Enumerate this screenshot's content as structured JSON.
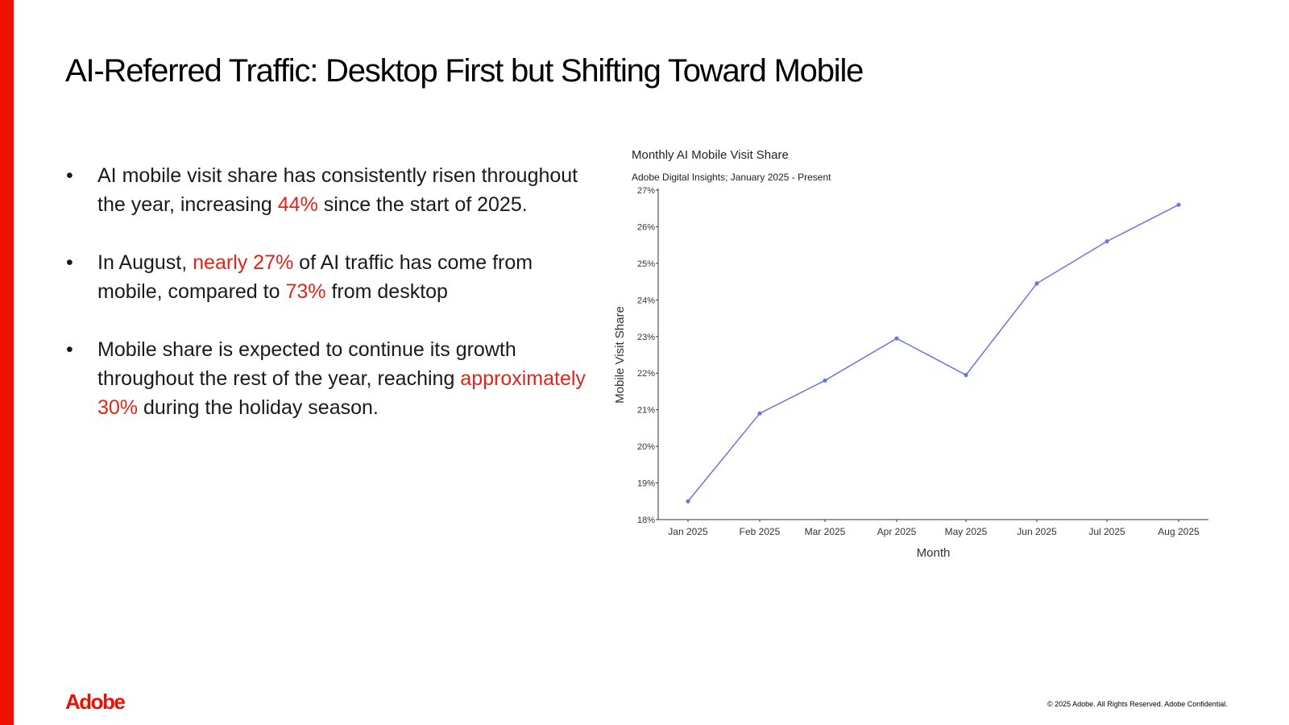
{
  "slide": {
    "title": "AI-Referred Traffic: Desktop First but Shifting Toward Mobile",
    "brand_color": "#eb1000",
    "highlight_color": "#e1251b"
  },
  "bullets": [
    {
      "pre": "AI mobile visit share has consistently risen throughout the year, increasing ",
      "hl": "44%",
      "post": " since the start of 2025."
    },
    {
      "pre": "In August, ",
      "hl": "nearly 27%",
      "mid": " of AI traffic has come from mobile, compared to ",
      "hl2": "73%",
      "post": " from desktop"
    },
    {
      "pre": "Mobile share is expected to continue its growth throughout the rest of the year, reaching ",
      "hl": "approximately 30%",
      "post": " during the holiday season."
    }
  ],
  "chart_data": {
    "type": "line",
    "title": "Monthly AI Mobile Visit Share",
    "subtitle": "Adobe Digital Insights; January 2025 - Present",
    "xlabel": "Month",
    "ylabel": "Mobile Visit Share",
    "categories": [
      "Jan 2025",
      "Feb 2025",
      "Mar 2025",
      "Apr 2025",
      "May 2025",
      "Jun 2025",
      "Jul 2025",
      "Aug 2025"
    ],
    "series": [
      {
        "name": "Mobile Visit Share",
        "values": [
          18.5,
          20.9,
          21.8,
          22.95,
          21.95,
          24.45,
          25.6,
          26.6
        ],
        "color": "#6b74e4"
      }
    ],
    "ylim": [
      18,
      27
    ],
    "yticks": [
      18,
      19,
      20,
      21,
      22,
      23,
      24,
      25,
      26,
      27
    ],
    "ytick_labels": [
      "18%",
      "19%",
      "20%",
      "21%",
      "22%",
      "23%",
      "24%",
      "25%",
      "26%",
      "27%"
    ],
    "grid": false
  },
  "logo": {
    "text": "Adobe"
  },
  "footer": {
    "text": "© 2025 Adobe. All Rights Reserved. Adobe Confidential."
  }
}
